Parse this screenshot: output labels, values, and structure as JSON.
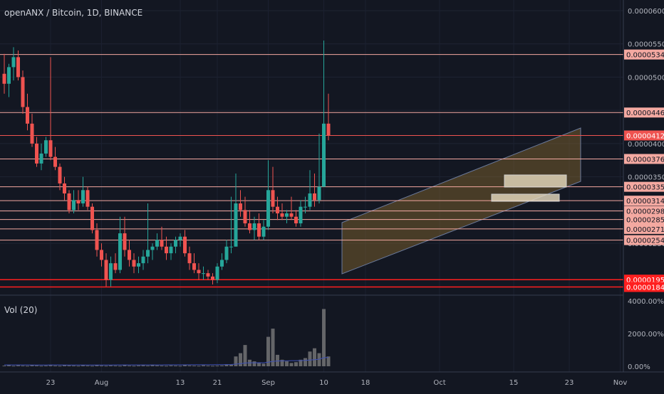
{
  "header": {
    "title": "openANX / Bitcoin, 1D, BINANCE"
  },
  "volume_panel": {
    "label": "Vol (20)"
  },
  "colors": {
    "background": "#131722",
    "up": "#26a69a",
    "down": "#ef5350",
    "level_line": "#f4a9a1",
    "support_line": "#ff1f1f",
    "current_price_badge": "#ef5350",
    "channel_fill": "#8a6a2e",
    "volume_bar": "#808080",
    "volume_ma": "#3f51b5"
  },
  "chart_data": [
    {
      "type": "candlestick",
      "title": "openANX / Bitcoin, 1D, BINANCE",
      "x_tick_labels": [
        "23",
        "Aug",
        "13",
        "21",
        "Sep",
        "10",
        "18",
        "Oct",
        "15",
        "23",
        "Nov"
      ],
      "y_tick_labels": [
        "0.00006000",
        "0.00005500",
        "0.00005000",
        "0.00004500",
        "0.00004000",
        "0.00003500",
        "0.00003000",
        "0.00002500"
      ],
      "ylim": [
        1.72e-05,
        6.16e-05
      ],
      "price_levels": [
        {
          "label": "0.00005340",
          "value": 5.34e-05
        },
        {
          "label": "0.00004467",
          "value": 4.467e-05
        },
        {
          "label": "0.00004122",
          "value": 4.122e-05,
          "current": true
        },
        {
          "label": "0.00003769",
          "value": 3.769e-05
        },
        {
          "label": "0.00003350",
          "value": 3.35e-05
        },
        {
          "label": "0.00003141",
          "value": 3.141e-05
        },
        {
          "label": "0.00002986",
          "value": 2.986e-05
        },
        {
          "label": "0.00002858",
          "value": 2.858e-05
        },
        {
          "label": "0.00002716",
          "value": 2.716e-05
        },
        {
          "label": "0.00002548",
          "value": 2.548e-05
        },
        {
          "label": "0.00001953",
          "value": 1.953e-05,
          "support": true
        },
        {
          "label": "0.00001843",
          "value": 1.843e-05,
          "support": true
        }
      ],
      "candles": [
        {
          "o": 5.05,
          "h": 5.35,
          "l": 4.75,
          "c": 4.9
        },
        {
          "o": 4.9,
          "h": 5.2,
          "l": 4.7,
          "c": 5.15
        },
        {
          "o": 5.15,
          "h": 5.45,
          "l": 4.95,
          "c": 5.3
        },
        {
          "o": 5.3,
          "h": 5.4,
          "l": 4.95,
          "c": 5.0
        },
        {
          "o": 5.0,
          "h": 5.1,
          "l": 4.45,
          "c": 4.55
        },
        {
          "o": 4.55,
          "h": 4.75,
          "l": 4.2,
          "c": 4.3
        },
        {
          "o": 4.3,
          "h": 4.45,
          "l": 3.95,
          "c": 4.0
        },
        {
          "o": 4.0,
          "h": 4.1,
          "l": 3.65,
          "c": 3.7
        },
        {
          "o": 3.7,
          "h": 4.0,
          "l": 3.6,
          "c": 3.85
        },
        {
          "o": 3.85,
          "h": 4.1,
          "l": 3.8,
          "c": 4.05
        },
        {
          "o": 4.05,
          "h": 5.3,
          "l": 3.75,
          "c": 3.8
        },
        {
          "o": 3.8,
          "h": 3.95,
          "l": 3.6,
          "c": 3.65
        },
        {
          "o": 3.65,
          "h": 3.7,
          "l": 3.3,
          "c": 3.4
        },
        {
          "o": 3.4,
          "h": 3.5,
          "l": 3.15,
          "c": 3.25
        },
        {
          "o": 3.25,
          "h": 3.3,
          "l": 2.95,
          "c": 3.0
        },
        {
          "o": 3.0,
          "h": 3.3,
          "l": 2.95,
          "c": 3.15
        },
        {
          "o": 3.15,
          "h": 3.3,
          "l": 3.0,
          "c": 3.1
        },
        {
          "o": 3.1,
          "h": 3.5,
          "l": 3.05,
          "c": 3.3
        },
        {
          "o": 3.3,
          "h": 3.35,
          "l": 3.0,
          "c": 3.05
        },
        {
          "o": 3.05,
          "h": 3.1,
          "l": 2.65,
          "c": 2.7
        },
        {
          "o": 2.7,
          "h": 2.8,
          "l": 2.3,
          "c": 2.4
        },
        {
          "o": 2.4,
          "h": 2.5,
          "l": 2.15,
          "c": 2.25
        },
        {
          "o": 2.25,
          "h": 2.35,
          "l": 1.85,
          "c": 1.95
        },
        {
          "o": 1.95,
          "h": 2.3,
          "l": 1.85,
          "c": 2.2
        },
        {
          "o": 2.2,
          "h": 2.35,
          "l": 2.05,
          "c": 2.1
        },
        {
          "o": 2.1,
          "h": 2.9,
          "l": 2.05,
          "c": 2.65
        },
        {
          "o": 2.65,
          "h": 2.9,
          "l": 2.3,
          "c": 2.4
        },
        {
          "o": 2.4,
          "h": 2.55,
          "l": 2.15,
          "c": 2.25
        },
        {
          "o": 2.25,
          "h": 2.35,
          "l": 2.05,
          "c": 2.15
        },
        {
          "o": 2.15,
          "h": 2.3,
          "l": 2.05,
          "c": 2.2
        },
        {
          "o": 2.2,
          "h": 2.4,
          "l": 2.1,
          "c": 2.3
        },
        {
          "o": 2.3,
          "h": 3.1,
          "l": 2.2,
          "c": 2.4
        },
        {
          "o": 2.4,
          "h": 2.5,
          "l": 2.25,
          "c": 2.45
        },
        {
          "o": 2.45,
          "h": 2.65,
          "l": 2.4,
          "c": 2.55
        },
        {
          "o": 2.55,
          "h": 2.75,
          "l": 2.4,
          "c": 2.45
        },
        {
          "o": 2.45,
          "h": 2.6,
          "l": 2.25,
          "c": 2.35
        },
        {
          "o": 2.35,
          "h": 2.5,
          "l": 2.25,
          "c": 2.45
        },
        {
          "o": 2.45,
          "h": 2.6,
          "l": 2.35,
          "c": 2.55
        },
        {
          "o": 2.55,
          "h": 2.65,
          "l": 2.45,
          "c": 2.6
        },
        {
          "o": 2.6,
          "h": 2.7,
          "l": 2.3,
          "c": 2.35
        },
        {
          "o": 2.35,
          "h": 2.45,
          "l": 2.1,
          "c": 2.2
        },
        {
          "o": 2.2,
          "h": 2.35,
          "l": 2.05,
          "c": 2.1
        },
        {
          "o": 2.1,
          "h": 2.2,
          "l": 1.95,
          "c": 2.05
        },
        {
          "o": 2.05,
          "h": 2.15,
          "l": 1.95,
          "c": 2.05
        },
        {
          "o": 2.05,
          "h": 2.1,
          "l": 1.95,
          "c": 2.0
        },
        {
          "o": 2.0,
          "h": 2.05,
          "l": 1.88,
          "c": 1.95
        },
        {
          "o": 1.95,
          "h": 2.2,
          "l": 1.9,
          "c": 2.15
        },
        {
          "o": 2.15,
          "h": 2.35,
          "l": 2.1,
          "c": 2.25
        },
        {
          "o": 2.25,
          "h": 2.55,
          "l": 2.2,
          "c": 2.45
        },
        {
          "o": 2.45,
          "h": 3.2,
          "l": 2.35,
          "c": 2.45
        },
        {
          "o": 2.45,
          "h": 3.55,
          "l": 2.45,
          "c": 3.1
        },
        {
          "o": 3.1,
          "h": 3.3,
          "l": 2.9,
          "c": 3.0
        },
        {
          "o": 3.0,
          "h": 3.2,
          "l": 2.75,
          "c": 2.8
        },
        {
          "o": 2.8,
          "h": 3.0,
          "l": 2.65,
          "c": 2.7
        },
        {
          "o": 2.7,
          "h": 2.9,
          "l": 2.55,
          "c": 2.8
        },
        {
          "o": 2.8,
          "h": 2.95,
          "l": 2.55,
          "c": 2.6
        },
        {
          "o": 2.6,
          "h": 2.85,
          "l": 2.55,
          "c": 2.75
        },
        {
          "o": 2.75,
          "h": 3.75,
          "l": 2.7,
          "c": 3.3
        },
        {
          "o": 3.3,
          "h": 3.65,
          "l": 2.95,
          "c": 3.05
        },
        {
          "o": 3.05,
          "h": 3.2,
          "l": 2.85,
          "c": 2.95
        },
        {
          "o": 2.95,
          "h": 3.1,
          "l": 2.85,
          "c": 2.9
        },
        {
          "o": 2.9,
          "h": 3.0,
          "l": 2.8,
          "c": 2.95
        },
        {
          "o": 2.95,
          "h": 3.2,
          "l": 2.85,
          "c": 2.9
        },
        {
          "o": 2.9,
          "h": 3.0,
          "l": 2.75,
          "c": 2.8
        },
        {
          "o": 2.8,
          "h": 3.15,
          "l": 2.75,
          "c": 3.05
        },
        {
          "o": 3.05,
          "h": 3.2,
          "l": 2.95,
          "c": 3.05
        },
        {
          "o": 3.05,
          "h": 3.6,
          "l": 3.0,
          "c": 3.25
        },
        {
          "o": 3.25,
          "h": 3.55,
          "l": 3.05,
          "c": 3.15
        },
        {
          "o": 3.15,
          "h": 4.15,
          "l": 3.1,
          "c": 3.35
        },
        {
          "o": 3.35,
          "h": 5.55,
          "l": 3.35,
          "c": 4.3
        },
        {
          "o": 4.3,
          "h": 4.75,
          "l": 4.05,
          "c": 4.12
        }
      ]
    },
    {
      "type": "bar",
      "title": "Vol (20)",
      "y_tick_labels": [
        "4000.00%",
        "2000.00%",
        "0.00%"
      ],
      "ylim": [
        0,
        4000
      ],
      "volume_percent": [
        40,
        90,
        30,
        60,
        40,
        30,
        70,
        50,
        30,
        40,
        60,
        40,
        30,
        80,
        50,
        40,
        30,
        60,
        40,
        30,
        70,
        40,
        30,
        50,
        40,
        30,
        80,
        40,
        30,
        50,
        60,
        40,
        90,
        50,
        40,
        30,
        50,
        40,
        30,
        80,
        50,
        40,
        30,
        60,
        40,
        30,
        40,
        50,
        120,
        100,
        600,
        800,
        1300,
        400,
        300,
        200,
        160,
        1800,
        2300,
        700,
        400,
        300,
        200,
        250,
        400,
        500,
        900,
        1100,
        800,
        3500,
        600
      ],
      "volume_ma_percent": [
        80,
        80,
        82,
        82,
        80,
        80,
        78,
        78,
        78,
        78,
        80,
        80,
        80,
        78,
        78,
        76,
        76,
        76,
        76,
        76,
        76,
        78,
        78,
        78,
        80,
        80,
        80,
        80,
        80,
        82,
        82,
        82,
        84,
        84,
        84,
        86,
        86,
        86,
        88,
        88,
        90,
        90,
        90,
        92,
        92,
        94,
        96,
        98,
        104,
        110,
        130,
        160,
        200,
        210,
        210,
        215,
        210,
        250,
        300,
        320,
        330,
        330,
        340,
        340,
        350,
        360,
        380,
        400,
        430,
        520,
        540
      ]
    }
  ]
}
